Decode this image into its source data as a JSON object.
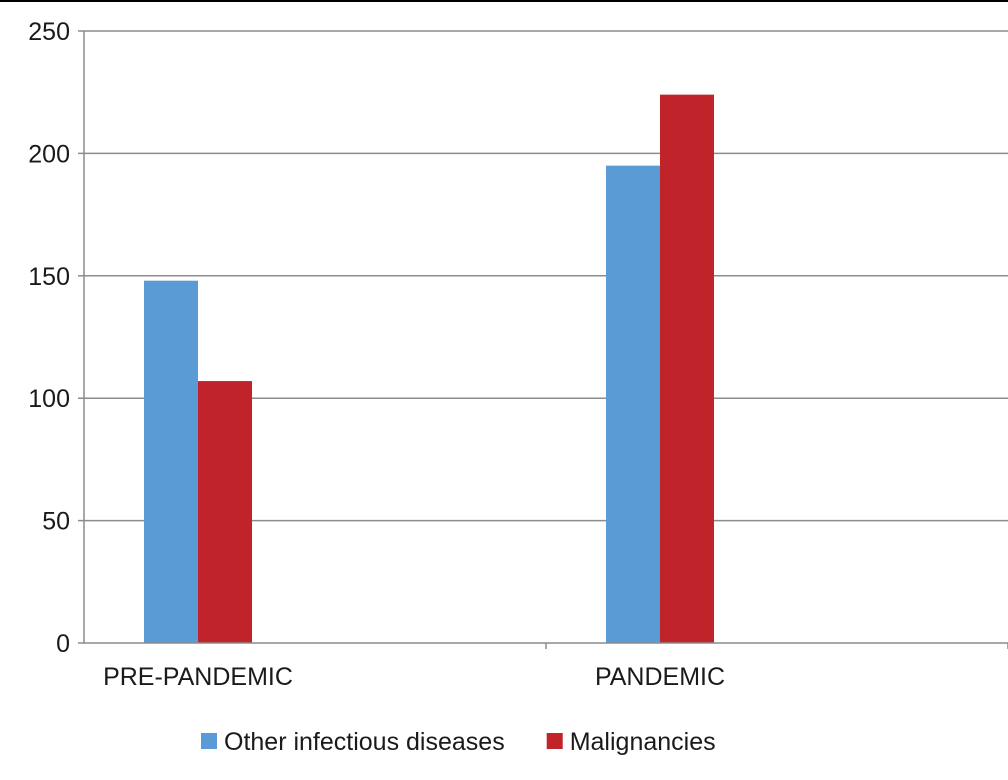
{
  "chart_data": {
    "type": "bar",
    "title": "",
    "xlabel": "",
    "ylabel": "",
    "categories": [
      "PRE-PANDEMIC",
      "PANDEMIC"
    ],
    "series": [
      {
        "name": "Other infectious diseases",
        "color": "#5b9bd5",
        "values": [
          148,
          195
        ]
      },
      {
        "name": "Malignancies",
        "color": "#c0232a",
        "values": [
          107,
          224
        ]
      }
    ],
    "ylim": [
      0,
      250
    ],
    "yticks": [
      0,
      50,
      100,
      150,
      200,
      250
    ],
    "grid": true,
    "legend_position": "bottom"
  }
}
